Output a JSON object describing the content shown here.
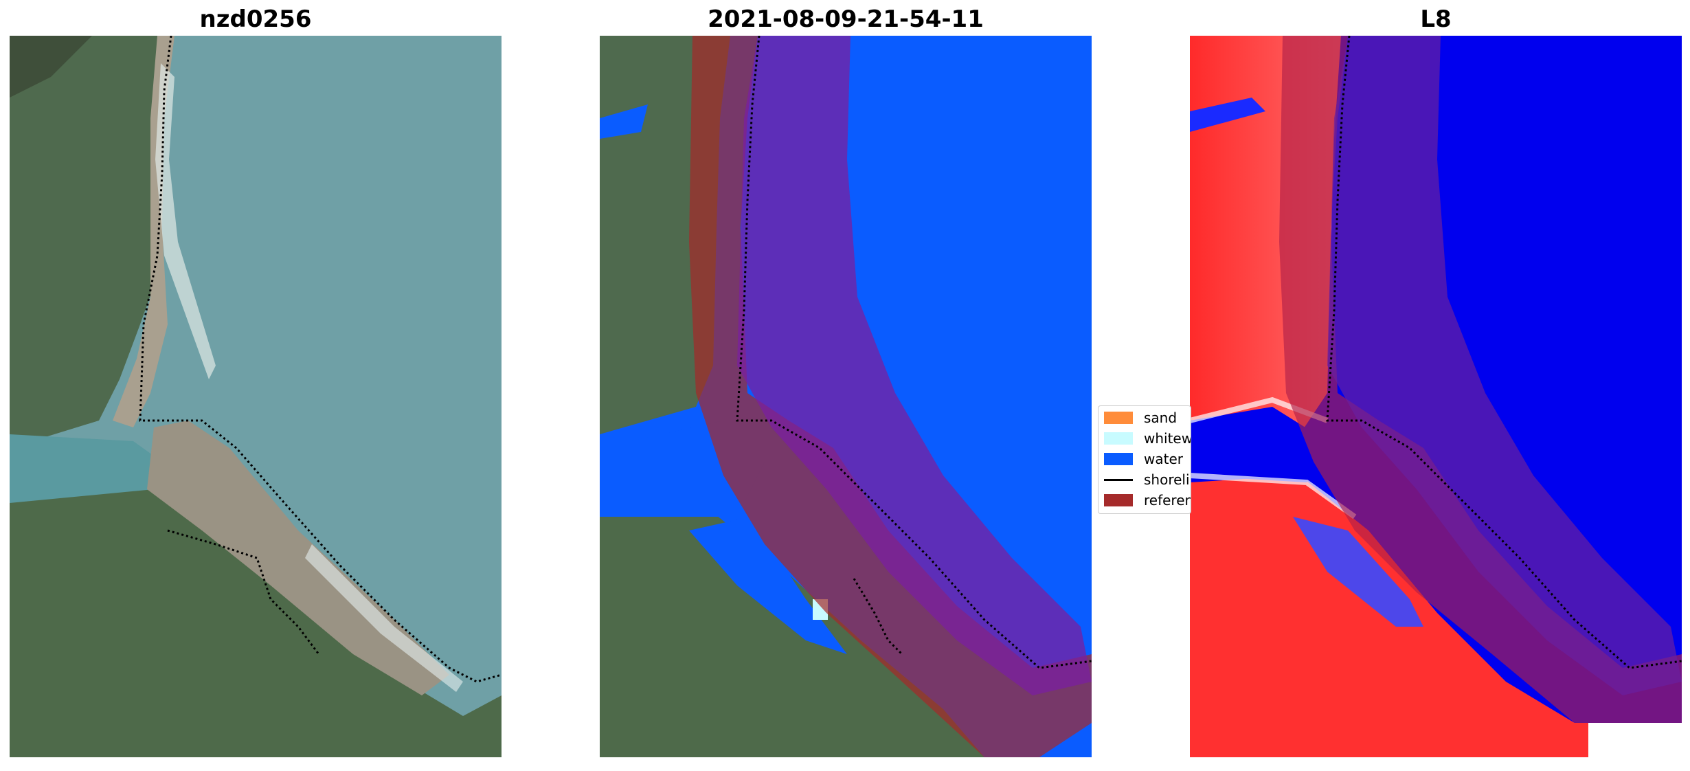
{
  "panels": [
    {
      "title": "nzd0256"
    },
    {
      "title": "2021-08-09-21-54-11"
    },
    {
      "title": "L8"
    }
  ],
  "legend": {
    "items": [
      {
        "label": "sand",
        "color": "#ff8c3a"
      },
      {
        "label": "whitewater",
        "color": "#c8fbff"
      },
      {
        "label": "water",
        "color": "#0a5cff"
      },
      {
        "label": "shoreline",
        "color": "#000000"
      },
      {
        "label": "reference",
        "color": "#a52a2a"
      }
    ]
  },
  "colors": {
    "water_class": "#0a5cff",
    "buffer_overlay": "#7a1fa0",
    "reference_region": "#a52a2a",
    "index_positive": "#ff1a1a",
    "index_negative": "#0000ee"
  }
}
